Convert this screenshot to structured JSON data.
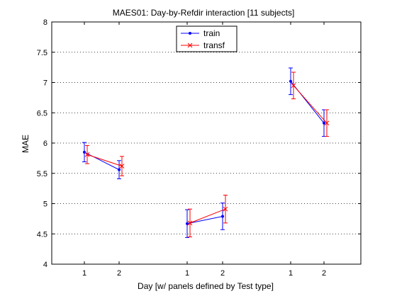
{
  "chart_data": {
    "type": "line",
    "title": "MAES01: Day-by-Refdir interaction  [11 subjects]",
    "xlabel": "Day  [w/ panels defined by Test type]",
    "ylabel": "MAE",
    "ylim": [
      4,
      8
    ],
    "yticks": [
      "4",
      "4.5",
      "5",
      "5.5",
      "6",
      "6.5",
      "7",
      "7.5",
      "8"
    ],
    "grid": "horizontal dotted",
    "legend_position": "top-center",
    "panels": [
      {
        "day_labels": [
          "1",
          "2"
        ]
      },
      {
        "day_labels": [
          "1",
          "2"
        ]
      },
      {
        "day_labels": [
          "1",
          "2"
        ]
      }
    ],
    "series": [
      {
        "name": "train",
        "color": "#0000ff",
        "marker": "dot",
        "panels": [
          {
            "y": [
              5.85,
              5.56
            ],
            "err": [
              0.16,
              0.15
            ]
          },
          {
            "y": [
              4.67,
              4.79
            ],
            "err": [
              0.23,
              0.22
            ]
          },
          {
            "y": [
              7.02,
              6.33
            ],
            "err": [
              0.22,
              0.22
            ]
          }
        ]
      },
      {
        "name": "transf",
        "color": "#ff0000",
        "marker": "x",
        "panels": [
          {
            "y": [
              5.81,
              5.62
            ],
            "err": [
              0.15,
              0.16
            ]
          },
          {
            "y": [
              4.68,
              4.91
            ],
            "err": [
              0.23,
              0.23
            ]
          },
          {
            "y": [
              6.95,
              6.33
            ],
            "err": [
              0.22,
              0.22
            ]
          }
        ]
      }
    ]
  }
}
